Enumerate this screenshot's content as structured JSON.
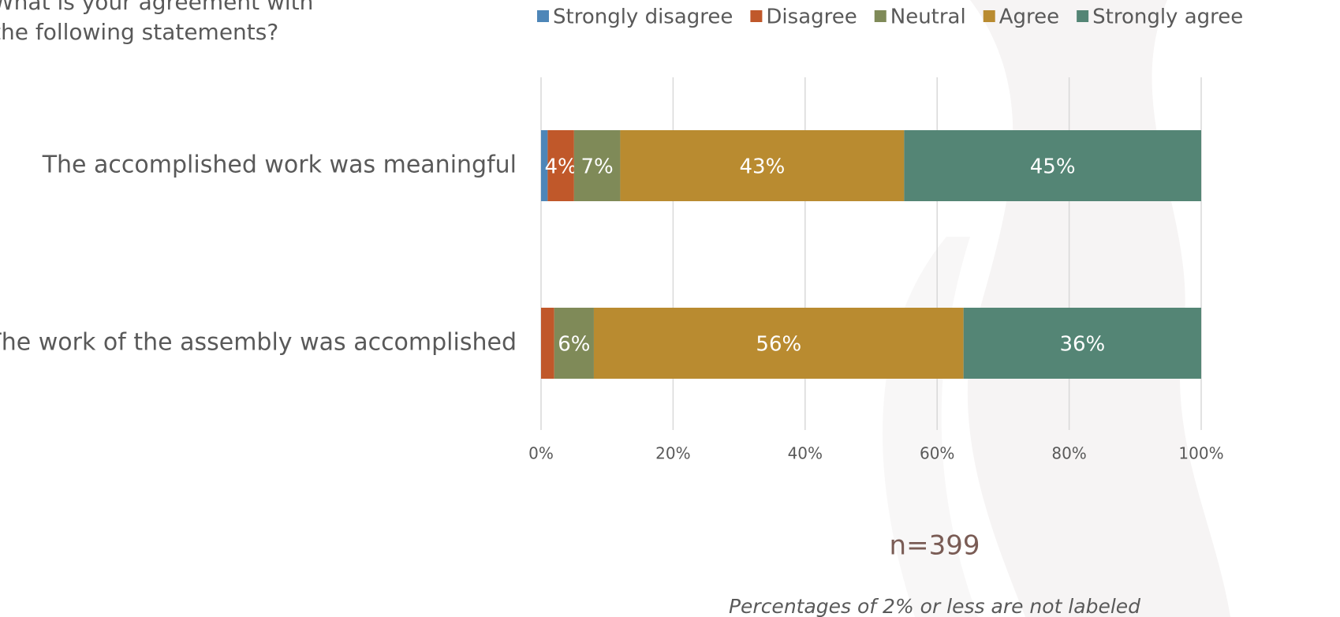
{
  "chart_data": {
    "type": "stacked_bar_horizontal",
    "title": "What is your agreement with the following statements?",
    "categories": [
      "The accomplished work was meaningful",
      "The work of the assembly was accomplished"
    ],
    "series": [
      {
        "name": "Strongly disagree",
        "color": "#4e86b8",
        "values": [
          1,
          0
        ],
        "value_labels": [
          null,
          null
        ]
      },
      {
        "name": "Disagree",
        "color": "#c0582a",
        "values": [
          4,
          2
        ],
        "value_labels": [
          "4%",
          null
        ]
      },
      {
        "name": "Neutral",
        "color": "#7f8a58",
        "values": [
          7,
          6
        ],
        "value_labels": [
          "7%",
          "6%"
        ]
      },
      {
        "name": "Agree",
        "color": "#b98b30",
        "values": [
          43,
          56
        ],
        "value_labels": [
          "43%",
          "56%"
        ]
      },
      {
        "name": "Strongly agree",
        "color": "#548575",
        "values": [
          45,
          36
        ],
        "value_labels": [
          "45%",
          "36%"
        ]
      }
    ],
    "xlim": [
      0,
      100
    ],
    "xticks": [
      {
        "value": 0,
        "label": "0%"
      },
      {
        "value": 20,
        "label": "20%"
      },
      {
        "value": 40,
        "label": "40%"
      },
      {
        "value": 60,
        "label": "60%"
      },
      {
        "value": 80,
        "label": "80%"
      },
      {
        "value": 100,
        "label": "100%"
      }
    ],
    "grid": true,
    "legend": "top",
    "annotations": [
      "n=399",
      "Percentages of 2% or less are not labeled"
    ]
  }
}
